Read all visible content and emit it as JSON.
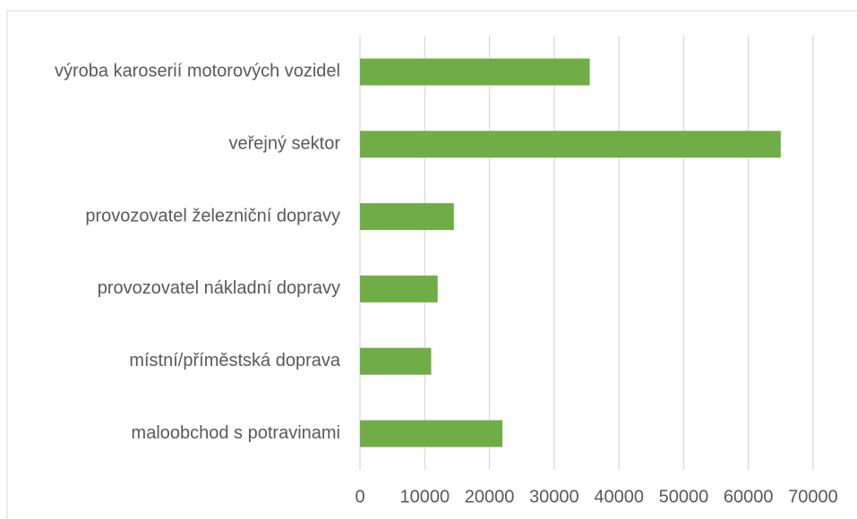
{
  "chart_data": {
    "type": "hbar",
    "categories": [
      "výroba karoserií motorových vozidel",
      "veřejný sektor",
      "provozovatel železniční dopravy",
      "provozovatel nákladní dopravy",
      "místní/příměstská doprava",
      "maloobchod s potravinami"
    ],
    "values": [
      35500,
      65000,
      14500,
      12000,
      11000,
      22000
    ],
    "color": "#70ad47",
    "xlim": [
      0,
      70000
    ],
    "xticks": [
      0,
      10000,
      20000,
      30000,
      40000,
      50000,
      60000,
      70000
    ],
    "grid": true
  }
}
